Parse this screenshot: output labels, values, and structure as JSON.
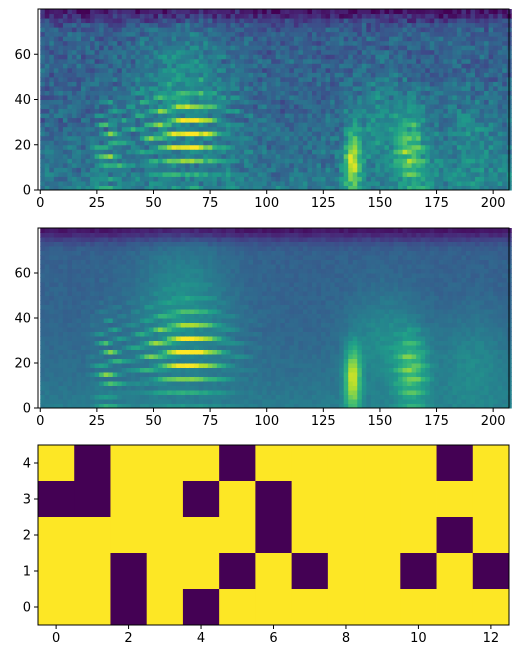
{
  "chart_data": [
    {
      "type": "heatmap",
      "title": "",
      "xlabel": "",
      "ylabel": "",
      "xlim": [
        -1,
        207
      ],
      "ylim": [
        0,
        79
      ],
      "xticks": [
        0,
        25,
        50,
        75,
        100,
        125,
        150,
        175,
        200
      ],
      "yticks": [
        0,
        20,
        40,
        60
      ],
      "colormap": "viridis",
      "rows": 80,
      "cols": 208,
      "description_of_values": "mel-spectrogram style intensity map; high values in horizontal harmonic bands around x 45-85 and y 15-35, vertical bright bursts near x 25-35, 135-140 and 160-170"
    },
    {
      "type": "heatmap",
      "title": "",
      "xlabel": "",
      "ylabel": "",
      "xlim": [
        -1,
        207
      ],
      "ylim": [
        0,
        79
      ],
      "xticks": [
        0,
        25,
        50,
        75,
        100,
        125,
        150,
        175,
        200
      ],
      "yticks": [
        0,
        20,
        40,
        60
      ],
      "colormap": "viridis",
      "rows": 80,
      "cols": 208,
      "description_of_values": "smoothed reconstruction of the first spectrogram; bright harmonic bands near x 50-80, y 10-35 and near x 155-170, y 5-25"
    },
    {
      "type": "heatmap",
      "title": "",
      "xlabel": "",
      "ylabel": "",
      "xticks": [
        0,
        2,
        4,
        6,
        8,
        10,
        12
      ],
      "yticks": [
        0,
        1,
        2,
        3,
        4
      ],
      "xlim": [
        -0.5,
        12.5
      ],
      "ylim": [
        -0.5,
        4.5
      ],
      "colormap": "viridis",
      "binary_colors": {
        "0": "#440154",
        "1": "#fde725"
      },
      "rows_top_to_bottom": [
        [
          1,
          0,
          1,
          1,
          1,
          0,
          1,
          1,
          1,
          1,
          1,
          0,
          1
        ],
        [
          0,
          0,
          1,
          1,
          0,
          1,
          0,
          1,
          1,
          1,
          1,
          1,
          1
        ],
        [
          1,
          1,
          1,
          1,
          1,
          1,
          0,
          1,
          1,
          1,
          1,
          0,
          1
        ],
        [
          1,
          1,
          0,
          1,
          1,
          0,
          1,
          0,
          1,
          1,
          0,
          1,
          0
        ],
        [
          1,
          1,
          0,
          1,
          0,
          1,
          1,
          1,
          1,
          1,
          1,
          1,
          1
        ]
      ]
    }
  ],
  "colors": {
    "viridis_dark": "#440154",
    "viridis_mid": "#21918c",
    "viridis_yellow": "#fde725",
    "axes_frame": "#000000"
  }
}
